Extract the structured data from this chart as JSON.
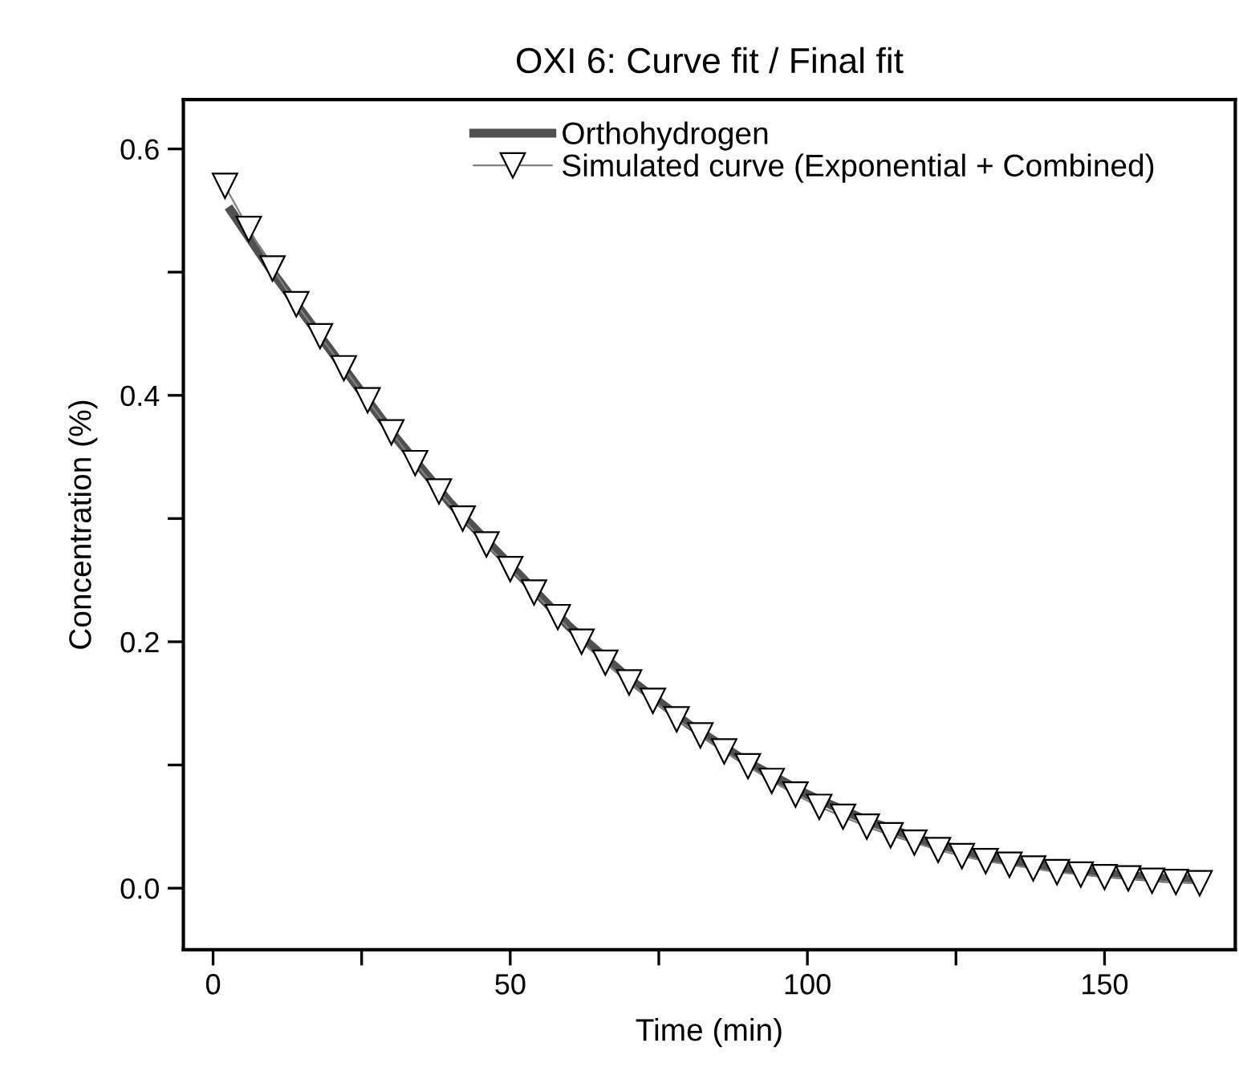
{
  "chart_data": {
    "type": "line",
    "title": "OXI 6: Curve fit / Final fit",
    "xlabel": "Time (min)",
    "ylabel": "Concentration (%)",
    "xlim": [
      -5,
      172
    ],
    "ylim": [
      -0.05,
      0.64
    ],
    "xticks": [
      0,
      {
        "value": 25,
        "label": null
      },
      50,
      {
        "value": 75,
        "label": null
      },
      100,
      {
        "value": 125,
        "label": null
      },
      150
    ],
    "yticks": [
      {
        "value": 0,
        "label": "0.0"
      },
      {
        "value": 0.1,
        "label": null
      },
      0.2,
      {
        "value": 0.3,
        "label": null
      },
      0.4,
      {
        "value": 0.5,
        "label": null
      },
      0.6
    ],
    "grid": false,
    "legend": "top",
    "series": [
      {
        "name": "Orthohydrogen",
        "color": "#505050",
        "marker": "none",
        "x": [
          3,
          10,
          20,
          30,
          40,
          50,
          60,
          70,
          80,
          90,
          100,
          110,
          120,
          130,
          140,
          150,
          160,
          166
        ],
        "values": [
          0.55,
          0.5,
          0.435,
          0.37,
          0.312,
          0.262,
          0.212,
          0.17,
          0.133,
          0.102,
          0.076,
          0.055,
          0.038,
          0.026,
          0.018,
          0.012,
          0.008,
          0.007
        ]
      },
      {
        "name": "Simulated curve (Exponential + Combined)",
        "color": "#000000",
        "marker": "triangle",
        "x": [
          2,
          6,
          10,
          14,
          18,
          22,
          26,
          30,
          34,
          38,
          42,
          46,
          50,
          54,
          58,
          62,
          66,
          70,
          74,
          78,
          82,
          86,
          90,
          94,
          98,
          102,
          106,
          110,
          114,
          118,
          122,
          126,
          130,
          134,
          138,
          142,
          146,
          150,
          154,
          158,
          162,
          166
        ],
        "values": [
          0.57,
          0.535,
          0.503,
          0.474,
          0.448,
          0.422,
          0.396,
          0.37,
          0.345,
          0.322,
          0.3,
          0.279,
          0.259,
          0.24,
          0.22,
          0.2,
          0.183,
          0.167,
          0.152,
          0.137,
          0.124,
          0.111,
          0.099,
          0.087,
          0.076,
          0.066,
          0.058,
          0.05,
          0.043,
          0.037,
          0.031,
          0.026,
          0.022,
          0.019,
          0.016,
          0.013,
          0.011,
          0.009,
          0.008,
          0.006,
          0.005,
          0.004
        ]
      }
    ]
  }
}
